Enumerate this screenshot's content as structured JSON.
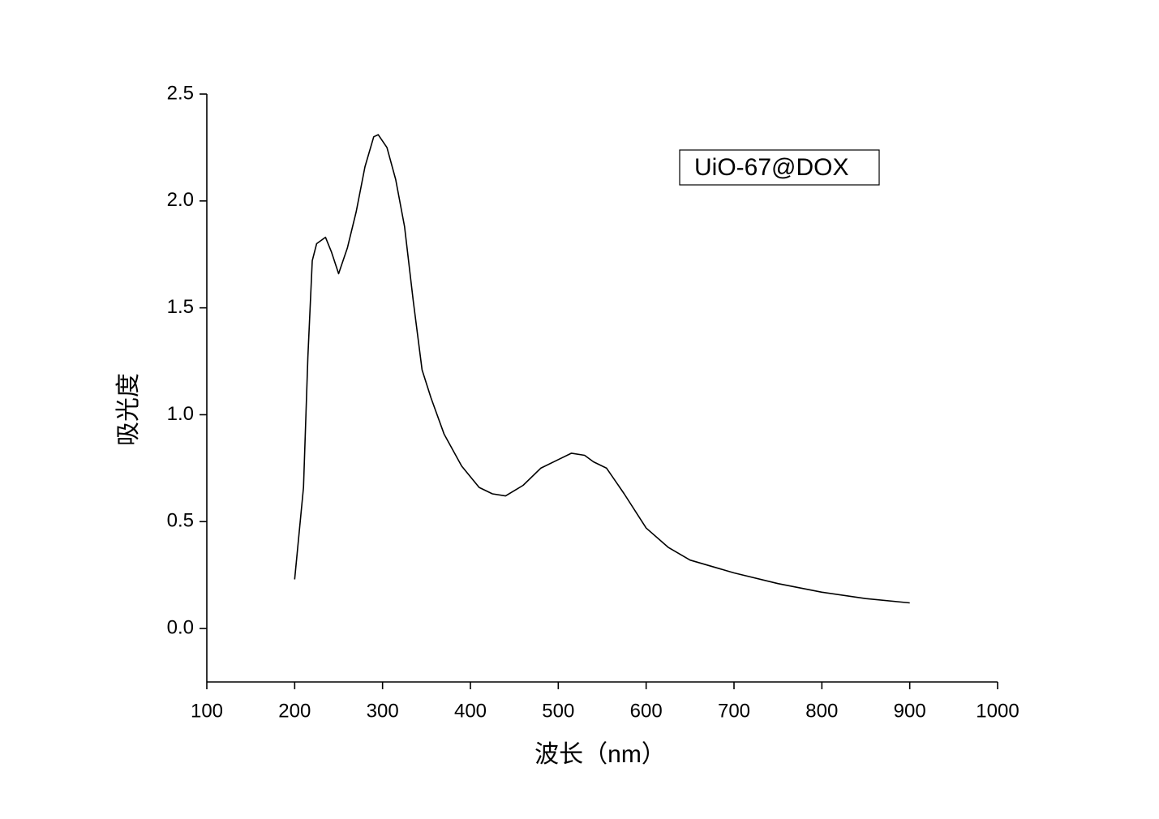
{
  "chart_data": {
    "type": "line",
    "x_label": "波长（nm）",
    "y_label": "吸光度",
    "x": [
      200,
      210,
      215,
      220,
      225,
      235,
      242,
      250,
      260,
      270,
      280,
      290,
      295,
      305,
      315,
      325,
      335,
      345,
      355,
      370,
      390,
      410,
      425,
      440,
      460,
      480,
      500,
      515,
      530,
      540,
      555,
      575,
      600,
      625,
      650,
      700,
      750,
      800,
      850,
      900
    ],
    "series": [
      {
        "name": "UiO-67@DOX",
        "color": "#000000",
        "values": [
          0.23,
          0.66,
          1.27,
          1.72,
          1.8,
          1.83,
          1.76,
          1.66,
          1.78,
          1.95,
          2.16,
          2.3,
          2.31,
          2.25,
          2.1,
          1.88,
          1.53,
          1.21,
          1.08,
          0.91,
          0.76,
          0.66,
          0.63,
          0.62,
          0.67,
          0.75,
          0.79,
          0.82,
          0.81,
          0.78,
          0.75,
          0.63,
          0.47,
          0.38,
          0.32,
          0.26,
          0.21,
          0.17,
          0.14,
          0.12
        ]
      }
    ],
    "xlim": [
      100,
      1000
    ],
    "xticks": [
      100,
      200,
      300,
      400,
      500,
      600,
      700,
      800,
      900,
      1000
    ],
    "ylim": [
      -0.25,
      2.5
    ],
    "yticks": [
      {
        "value": 0,
        "label": "0.0"
      },
      0.5,
      {
        "value": 1,
        "label": "1.0"
      },
      1.5,
      {
        "value": 2,
        "label": "2.0"
      },
      2.5
    ],
    "legend": "upper right"
  }
}
